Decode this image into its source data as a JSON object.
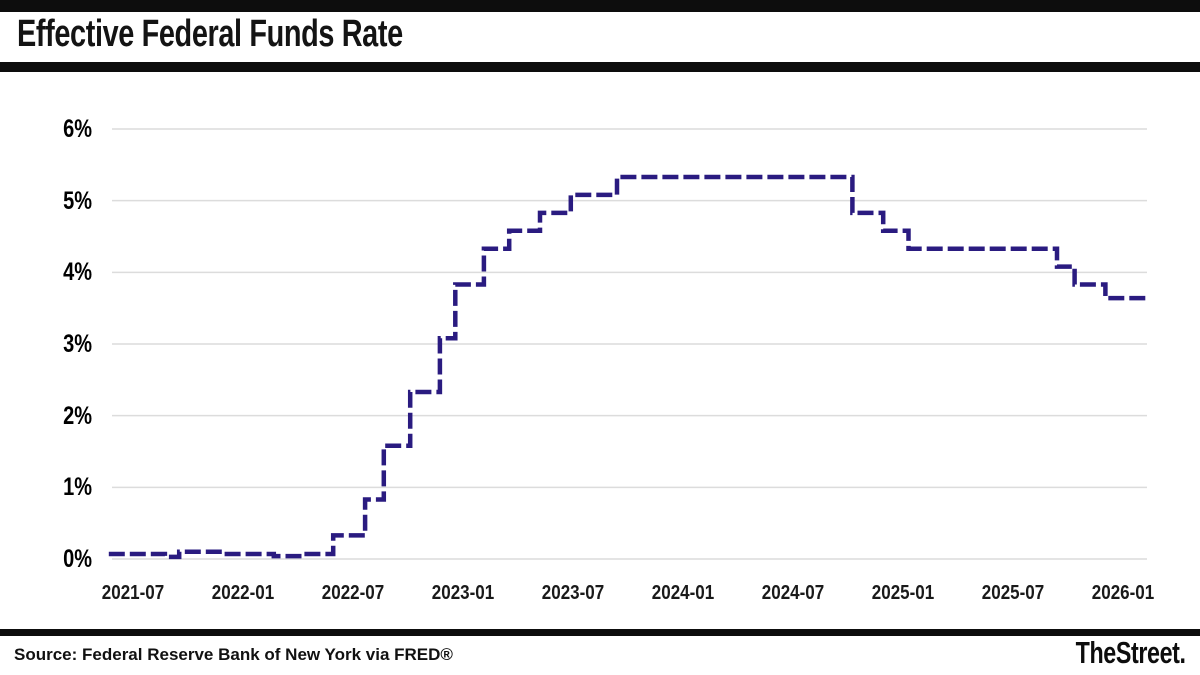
{
  "header": {
    "title": "Effective Federal Funds Rate"
  },
  "footer": {
    "source": "Source: Federal Reserve Bank of New York via FRED®",
    "logo": "TheStreet."
  },
  "chart_data": {
    "type": "line",
    "title": "Effective Federal Funds Rate",
    "line_style": "stepped-dashed",
    "line_color": "#2a1b80",
    "grid_color": "#dcdcdc",
    "ylabel": "",
    "xlabel": "",
    "ylim": [
      0,
      6
    ],
    "xlim_years": [
      2021.39,
      2026.11
    ],
    "grid": true,
    "legend": "none",
    "y_ticks": [
      "6%",
      "5%",
      "4%",
      "3%",
      "2%",
      "1%",
      "0%"
    ],
    "y_tick_values": [
      6,
      5,
      4,
      3,
      2,
      1,
      0
    ],
    "x_ticks": [
      "2021-07",
      "2022-01",
      "2022-07",
      "2023-01",
      "2023-07",
      "2024-01",
      "2024-07",
      "2025-01",
      "2025-07",
      "2026-01"
    ],
    "x_tick_years": [
      2021.5,
      2022.0,
      2022.5,
      2023.0,
      2023.5,
      2024.0,
      2024.5,
      2025.0,
      2025.5,
      2026.0
    ],
    "series": [
      {
        "name": "Effective Federal Funds Rate (%)",
        "step_points": [
          [
            2021.39,
            0.07
          ],
          [
            2021.645,
            0.03
          ],
          [
            2021.71,
            0.1
          ],
          [
            2021.91,
            0.07
          ],
          [
            2022.14,
            0.04
          ],
          [
            2022.27,
            0.07
          ],
          [
            2022.41,
            0.33
          ],
          [
            2022.555,
            0.83
          ],
          [
            2022.64,
            1.58
          ],
          [
            2022.76,
            2.33
          ],
          [
            2022.895,
            3.08
          ],
          [
            2022.965,
            3.83
          ],
          [
            2023.095,
            4.33
          ],
          [
            2023.21,
            4.58
          ],
          [
            2023.35,
            4.83
          ],
          [
            2023.49,
            5.08
          ],
          [
            2023.7,
            5.33
          ],
          [
            2024.77,
            4.83
          ],
          [
            2024.91,
            4.58
          ],
          [
            2025.025,
            4.33
          ],
          [
            2025.7,
            4.08
          ],
          [
            2025.78,
            3.83
          ],
          [
            2025.92,
            3.64
          ],
          [
            2026.11,
            3.64
          ]
        ]
      }
    ]
  }
}
